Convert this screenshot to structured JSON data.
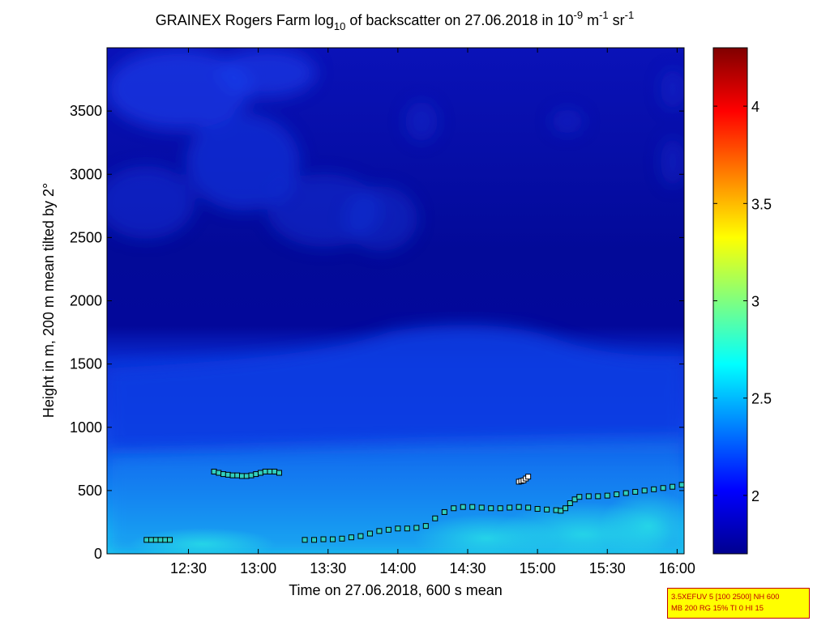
{
  "figure": {
    "title_prefix": "GRAINEX Rogers Farm log",
    "title_sub": "10",
    "title_mid": " of backscatter on 27.06.2018 in 10",
    "title_sup1": "-9",
    "title_m": " m",
    "title_sup2": "-1",
    "title_sr": " sr",
    "title_sup3": "-1",
    "xlabel": "Time on 27.06.2018, 600 s mean",
    "ylabel": "Height in m, 200 m mean tilted by 2°",
    "info_line1": "3.5XEFUV 5 [100 2500] NH 600",
    "info_line2": "MB 200 RG 15% TI 0 HI 15"
  },
  "chart_data": {
    "type": "heatmap",
    "x_axis": {
      "range": [
        "11:55",
        "16:03"
      ],
      "ticks": [
        "12:30",
        "13:00",
        "13:30",
        "14:00",
        "14:30",
        "15:00",
        "15:30",
        "16:00"
      ]
    },
    "y_axis": {
      "range": [
        0,
        4000
      ],
      "ticks": [
        0,
        500,
        1000,
        1500,
        2000,
        2500,
        3000,
        3500
      ]
    },
    "colorbar": {
      "range": [
        1.7,
        4.3
      ],
      "ticks": [
        "2",
        "2.5",
        "3",
        "3.5",
        "4"
      ],
      "colormap": "jet"
    },
    "field_description_points": [
      {
        "x": "12:00",
        "boundary_height": 1450
      },
      {
        "x": "14:00",
        "boundary_height": 1650
      },
      {
        "x": "15:00",
        "boundary_height": 1700
      },
      {
        "x": "16:00",
        "boundary_height": 1500
      }
    ],
    "series": [
      {
        "marker": "square",
        "points": [
          [
            "12:12",
            110
          ],
          [
            "12:14",
            110
          ],
          [
            "12:16",
            110
          ],
          [
            "12:18",
            110
          ],
          [
            "12:20",
            110
          ],
          [
            "12:22",
            110
          ],
          [
            "12:41",
            650
          ],
          [
            "12:43",
            640
          ],
          [
            "12:45",
            630
          ],
          [
            "12:47",
            625
          ],
          [
            "12:49",
            620
          ],
          [
            "12:51",
            620
          ],
          [
            "12:53",
            615
          ],
          [
            "12:55",
            615
          ],
          [
            "12:57",
            620
          ],
          [
            "12:59",
            630
          ],
          [
            "13:01",
            640
          ],
          [
            "13:03",
            650
          ],
          [
            "13:05",
            650
          ],
          [
            "13:07",
            650
          ],
          [
            "13:09",
            640
          ],
          [
            "13:20",
            110
          ],
          [
            "13:24",
            110
          ],
          [
            "13:28",
            115
          ],
          [
            "13:32",
            115
          ],
          [
            "13:36",
            120
          ],
          [
            "13:40",
            130
          ],
          [
            "13:44",
            140
          ],
          [
            "13:48",
            160
          ],
          [
            "13:52",
            180
          ],
          [
            "13:56",
            190
          ],
          [
            "14:00",
            200
          ],
          [
            "14:04",
            200
          ],
          [
            "14:08",
            205
          ],
          [
            "14:12",
            220
          ],
          [
            "14:16",
            280
          ],
          [
            "14:20",
            330
          ],
          [
            "14:24",
            360
          ],
          [
            "14:28",
            370
          ],
          [
            "14:32",
            370
          ],
          [
            "14:36",
            365
          ],
          [
            "14:40",
            360
          ],
          [
            "14:44",
            360
          ],
          [
            "14:48",
            365
          ],
          [
            "14:52",
            370
          ],
          [
            "14:56",
            365
          ],
          [
            "15:00",
            355
          ],
          [
            "15:04",
            350
          ],
          [
            "15:08",
            345
          ],
          [
            "15:10",
            340
          ],
          [
            "15:12",
            360
          ],
          [
            "15:14",
            400
          ],
          [
            "15:16",
            430
          ],
          [
            "15:18",
            450
          ],
          [
            "15:22",
            455
          ],
          [
            "15:26",
            455
          ],
          [
            "15:30",
            460
          ],
          [
            "15:34",
            470
          ],
          [
            "15:38",
            480
          ],
          [
            "15:42",
            490
          ],
          [
            "15:46",
            500
          ],
          [
            "15:50",
            510
          ],
          [
            "15:54",
            520
          ],
          [
            "15:58",
            530
          ],
          [
            "16:02",
            545
          ]
        ],
        "outliers": [
          [
            "14:52",
            570
          ],
          [
            "14:53",
            575
          ],
          [
            "14:54",
            580
          ],
          [
            "14:55",
            595
          ],
          [
            "14:56",
            610
          ]
        ]
      }
    ]
  }
}
